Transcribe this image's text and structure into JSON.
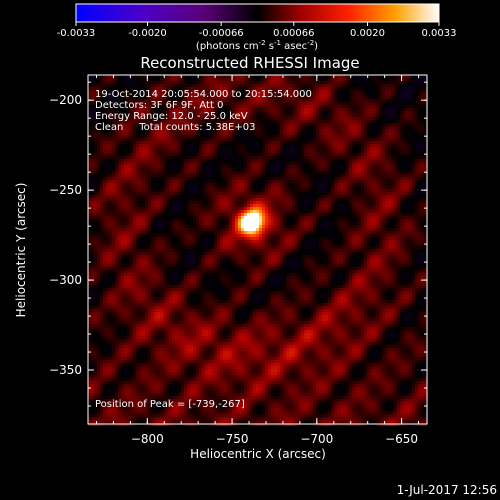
{
  "chart_data": {
    "type": "heatmap",
    "title": "Reconstructed RHESSI Image",
    "xlabel": "Heliocentric X (arcsec)",
    "ylabel": "Heliocentric Y (arcsec)",
    "xlim": [
      -835,
      -635
    ],
    "ylim": [
      -380,
      -186
    ],
    "x_ticks": [
      -800,
      -750,
      -700,
      -650
    ],
    "y_ticks": [
      -200,
      -250,
      -300,
      -350
    ],
    "colorbar": {
      "range": [
        -0.0033,
        0.0033
      ],
      "tick_values": [
        -0.0033,
        -0.002,
        -0.00066,
        0.00066,
        0.002,
        0.0033
      ],
      "tick_labels": [
        "-0.0033",
        "-0.0020",
        "-0.00066",
        "0.00066",
        "0.0020",
        "0.0033"
      ],
      "unit_label": "(photons cm",
      "unit_sup1": "-2",
      "unit_mid": " s",
      "unit_sup2": "-1",
      "unit_end": " asec",
      "unit_sup3": "-2",
      "unit_close": ")"
    },
    "annotations": {
      "line1": "19-Oct-2014 20:05:54.000 to 20:15:54.000",
      "line2": "Detectors: 3F 6F 9F, Att 0",
      "line3": "Energy Range: 12.0 - 25.0 keV",
      "line4": "Clean     Total counts: 5.38E+03",
      "peak": "Position of Peak = [-739,-267]"
    },
    "peak": {
      "x": -739,
      "y": -267,
      "value": 0.0033
    },
    "grid": false
  },
  "footer": {
    "timestamp": "1-Jul-2017 12:56"
  }
}
